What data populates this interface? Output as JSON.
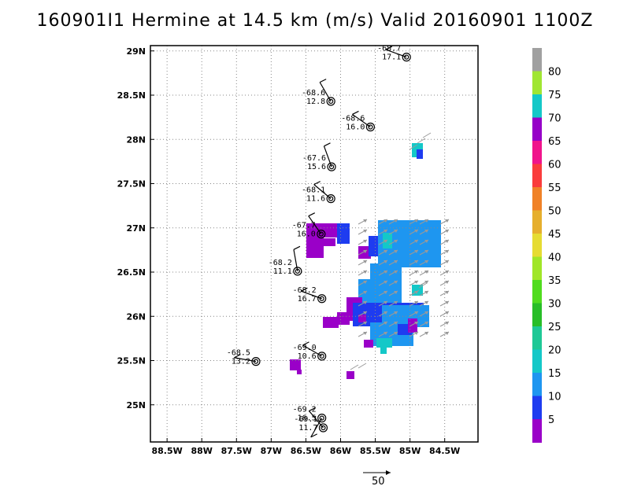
{
  "title": "160901I1 Hermine at 14.5 km (m/s) Valid 20160901 1100Z",
  "map": {
    "lon_ticks": [
      "88.5W",
      "88W",
      "87.5W",
      "87W",
      "86.5W",
      "86W",
      "85.5W",
      "85W",
      "84.5W"
    ],
    "lat_ticks": [
      "29N",
      "28.5N",
      "28N",
      "27.5N",
      "27N",
      "26.5N",
      "26N",
      "25.5N",
      "25N"
    ],
    "grid_lines": "dotted"
  },
  "colorbar": {
    "labels": [
      "5",
      "10",
      "15",
      "20",
      "25",
      "30",
      "35",
      "40",
      "45",
      "50",
      "55",
      "60",
      "65",
      "70",
      "75",
      "80"
    ],
    "colors": [
      "#9a00c8",
      "#1e3cf0",
      "#1e96f0",
      "#14c8c8",
      "#1ec896",
      "#28be28",
      "#50dc1e",
      "#a0e628",
      "#e6dc32",
      "#e6af2d",
      "#f08228",
      "#fa3c3c",
      "#f0148c",
      "#9600c8",
      "#14c8c8",
      "#a0e632",
      "#a0a0a0"
    ]
  },
  "stations": [
    {
      "lon": -85.05,
      "lat": 28.93,
      "temp": "-68.7",
      "val": "17.1"
    },
    {
      "lon": -86.14,
      "lat": 28.43,
      "temp": "-68.6",
      "val": "12.8"
    },
    {
      "lon": -85.57,
      "lat": 28.14,
      "temp": "-68.6",
      "val": "16.0"
    },
    {
      "lon": -86.13,
      "lat": 27.69,
      "temp": "-67.6",
      "val": "15.6"
    },
    {
      "lon": -86.14,
      "lat": 27.33,
      "temp": "-68.1",
      "val": "11.6"
    },
    {
      "lon": -86.28,
      "lat": 26.93,
      "temp": "-67.7",
      "val": "16.0"
    },
    {
      "lon": -86.62,
      "lat": 26.51,
      "temp": "-68.2",
      "val": "11.1"
    },
    {
      "lon": -86.27,
      "lat": 26.2,
      "temp": "-68.2",
      "val": "16.7"
    },
    {
      "lon": -87.22,
      "lat": 25.49,
      "temp": "-68.5",
      "val": "13.2"
    },
    {
      "lon": -86.27,
      "lat": 25.55,
      "temp": "-69.0",
      "val": "10.6"
    },
    {
      "lon": -86.27,
      "lat": 24.85,
      "temp": "-69.2",
      "val": "16.5"
    },
    {
      "lon": -86.25,
      "lat": 24.74,
      "temp": "-69.1",
      "val": "11.7"
    }
  ],
  "reference_vector": {
    "label": "50"
  }
}
